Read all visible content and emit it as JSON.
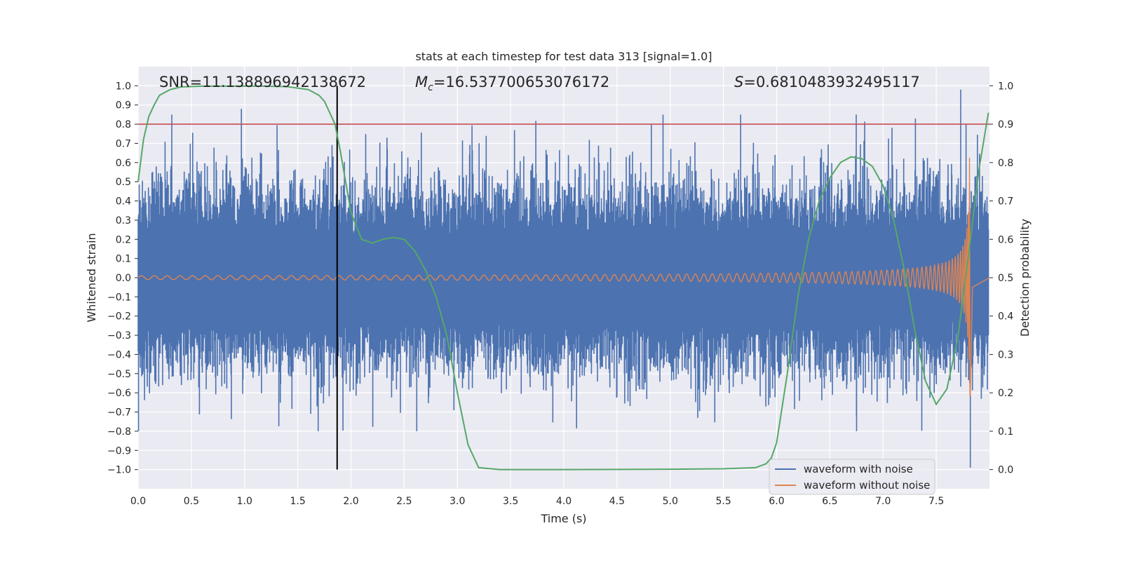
{
  "chart_data": {
    "type": "line",
    "title": "stats at each timestep for test data 313 [signal=1.0]",
    "xlabel": "Time (s)",
    "ylabel_left": "Whitened strain",
    "ylabel_right": "Detection probability",
    "xlim": [
      0.0,
      8.0
    ],
    "ylim_left": [
      -1.1,
      1.1
    ],
    "ylim_right": [
      -0.05,
      1.05
    ],
    "grid": true,
    "xticks": [
      "0.0",
      "0.5",
      "1.0",
      "1.5",
      "2.0",
      "2.5",
      "3.0",
      "3.5",
      "4.0",
      "4.5",
      "5.0",
      "5.5",
      "6.0",
      "6.5",
      "7.0",
      "7.5"
    ],
    "yticks_left": [
      "1.0",
      "0.9",
      "0.8",
      "0.7",
      "0.6",
      "0.5",
      "0.4",
      "0.3",
      "0.2",
      "0.1",
      "0.0",
      "−0.1",
      "−0.2",
      "−0.3",
      "−0.4",
      "−0.5",
      "−0.6",
      "−0.7",
      "−0.8",
      "−0.9",
      "−1.0"
    ],
    "yticks_right": [
      "1.0",
      "0.9",
      "0.8",
      "0.7",
      "0.6",
      "0.5",
      "0.4",
      "0.3",
      "0.2",
      "0.1",
      "0.0"
    ],
    "annotations": {
      "snr": "SNR=11.138896942138672",
      "mc_symbol": "M",
      "mc_sub": "c",
      "mc_value": "=16.537700653076172",
      "s_symbol": "S",
      "s_value": "=0.6810483932495117"
    },
    "threshold": {
      "value": 0.9,
      "axis": "right",
      "color": "#c44e52"
    },
    "marker_time": 1.87,
    "series": [
      {
        "name": "waveform with noise",
        "axis": "left",
        "color": "#4c72b0",
        "description_points": {
          "time_range": [
            0.0,
            7.99
          ],
          "typical_envelope": [
            -0.55,
            0.6
          ],
          "peak_max": 0.98,
          "peak_min": -0.99
        }
      },
      {
        "name": "waveform without noise",
        "axis": "left",
        "color": "#dd8452",
        "chirp": {
          "start_amp": 0.01,
          "merger_time": 7.82,
          "merger_amp": 0.65
        }
      },
      {
        "name": "detection probability",
        "axis": "right",
        "color": "#55a868",
        "x": [
          0.0,
          0.05,
          0.1,
          0.15,
          0.2,
          0.3,
          0.4,
          0.6,
          0.8,
          1.0,
          1.2,
          1.4,
          1.6,
          1.7,
          1.75,
          1.8,
          1.85,
          1.9,
          2.0,
          2.1,
          2.2,
          2.3,
          2.4,
          2.5,
          2.6,
          2.7,
          2.8,
          2.9,
          3.0,
          3.1,
          3.2,
          3.4,
          4.0,
          5.0,
          5.5,
          5.8,
          5.9,
          5.95,
          6.0,
          6.1,
          6.2,
          6.3,
          6.4,
          6.5,
          6.6,
          6.7,
          6.8,
          6.9,
          7.0,
          7.1,
          7.2,
          7.3,
          7.4,
          7.5,
          7.6,
          7.7,
          7.8,
          7.9,
          7.99
        ],
        "y": [
          0.75,
          0.86,
          0.92,
          0.95,
          0.975,
          0.99,
          0.997,
          0.999,
          0.999,
          0.999,
          0.999,
          0.998,
          0.99,
          0.975,
          0.96,
          0.93,
          0.9,
          0.83,
          0.67,
          0.6,
          0.59,
          0.6,
          0.605,
          0.6,
          0.57,
          0.52,
          0.45,
          0.35,
          0.2,
          0.065,
          0.005,
          0.0,
          0.0,
          0.001,
          0.002,
          0.005,
          0.015,
          0.03,
          0.07,
          0.25,
          0.45,
          0.6,
          0.7,
          0.76,
          0.8,
          0.815,
          0.81,
          0.79,
          0.74,
          0.65,
          0.52,
          0.36,
          0.23,
          0.17,
          0.21,
          0.34,
          0.55,
          0.78,
          0.93
        ]
      }
    ],
    "legend": {
      "placement": "lower-right",
      "entries": [
        {
          "label": "waveform with noise",
          "color": "#4c72b0"
        },
        {
          "label": "waveform without noise",
          "color": "#dd8452"
        }
      ]
    }
  }
}
